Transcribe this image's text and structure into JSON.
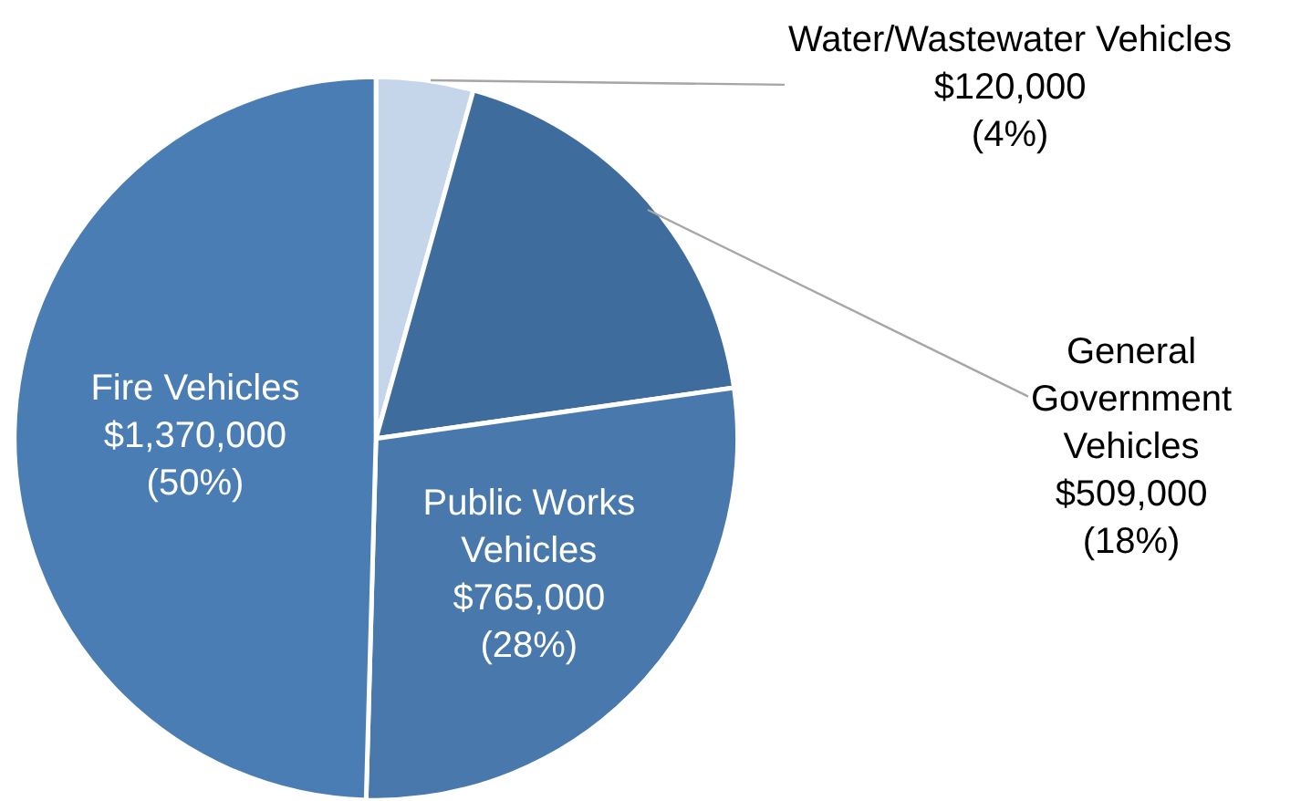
{
  "chart_data": {
    "type": "pie",
    "categories": [
      "Water/Wastewater Vehicles",
      "General Government Vehicles",
      "Public Works Vehicles",
      "Fire Vehicles"
    ],
    "values": [
      120000,
      509000,
      765000,
      1370000
    ],
    "colors": [
      "#c5d6ea",
      "#3e6c9c",
      "#4878ac",
      "#4a7db3"
    ],
    "value_labels": [
      "$120,000\n(4%)",
      "$509,000\n(18%)",
      "$765,000\n(28%)",
      "$1,370,000\n(50%)"
    ],
    "legend": false
  }
}
